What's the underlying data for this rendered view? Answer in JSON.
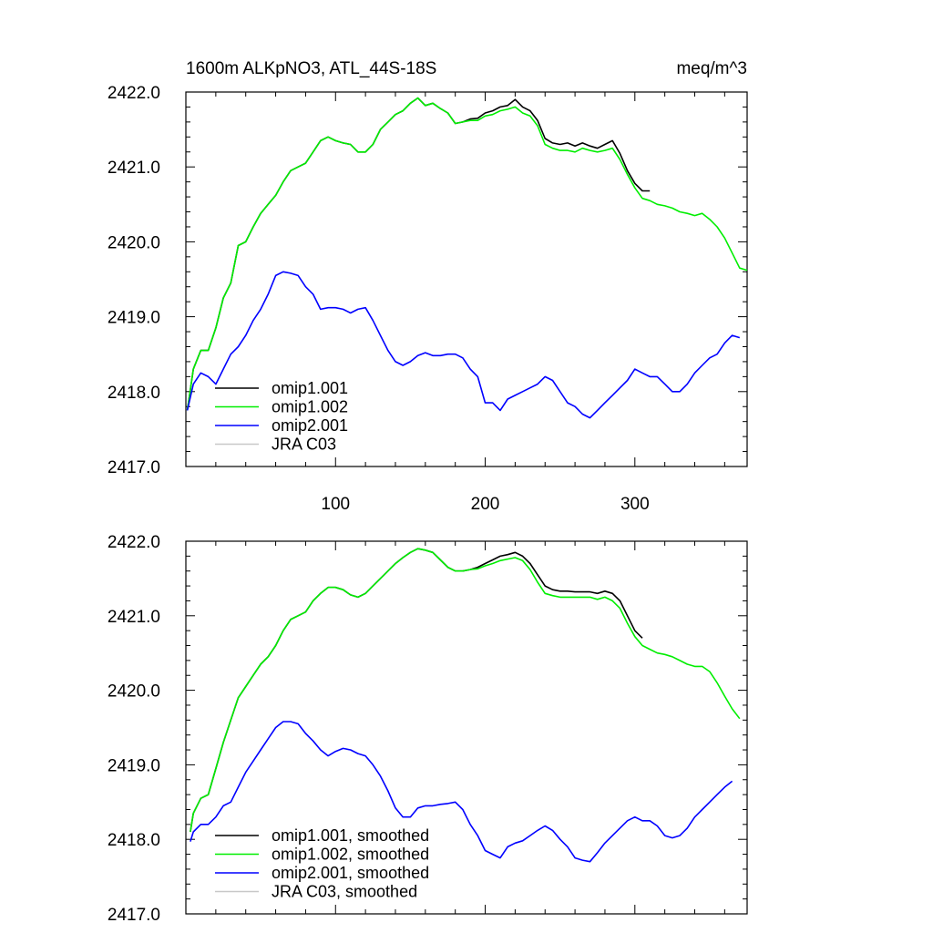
{
  "figure": {
    "title_left": "1600m ALKpNO3, ATL_44S-18S",
    "title_right": "meq/m^3"
  },
  "chart_data": [
    {
      "type": "line",
      "title": "1600m ALKpNO3, ATL_44S-18S",
      "units": "meq/m^3",
      "xlim": [
        0,
        375
      ],
      "ylim": [
        2417.0,
        2422.0
      ],
      "x_ticks": [
        100,
        200,
        300
      ],
      "x_tick_labels": [
        "100",
        "200",
        "300"
      ],
      "y_ticks": [
        2417.0,
        2418.0,
        2419.0,
        2420.0,
        2421.0,
        2422.0
      ],
      "y_tick_labels": [
        "2417.0",
        "2418.0",
        "2419.0",
        "2420.0",
        "2421.0",
        "2422.0"
      ],
      "grid": false,
      "legend_position": "bottom-left",
      "series": [
        {
          "name": "omip1.001",
          "color": "#000000",
          "x": [
            1,
            5,
            10,
            15,
            20,
            25,
            30,
            35,
            40,
            45,
            50,
            55,
            60,
            65,
            70,
            75,
            80,
            85,
            90,
            95,
            100,
            105,
            110,
            115,
            120,
            125,
            130,
            135,
            140,
            145,
            150,
            155,
            160,
            165,
            170,
            175,
            180,
            185,
            190,
            195,
            200,
            205,
            210,
            215,
            220,
            225,
            230,
            235,
            240,
            245,
            250,
            255,
            260,
            265,
            270,
            275,
            280,
            285,
            290,
            295,
            300,
            305,
            310
          ],
          "y": [
            2417.75,
            2418.3,
            2418.55,
            2418.55,
            2418.85,
            2419.25,
            2419.45,
            2419.95,
            2420.0,
            2420.2,
            2420.38,
            2420.5,
            2420.62,
            2420.8,
            2420.95,
            2421.0,
            2421.05,
            2421.2,
            2421.35,
            2421.4,
            2421.35,
            2421.32,
            2421.3,
            2421.2,
            2421.2,
            2421.3,
            2421.5,
            2421.6,
            2421.7,
            2421.75,
            2421.85,
            2421.92,
            2421.82,
            2421.85,
            2421.78,
            2421.72,
            2421.58,
            2421.6,
            2421.64,
            2421.65,
            2421.72,
            2421.75,
            2421.8,
            2421.82,
            2421.9,
            2421.8,
            2421.75,
            2421.62,
            2421.38,
            2421.32,
            2421.3,
            2421.32,
            2421.28,
            2421.32,
            2421.28,
            2421.25,
            2421.3,
            2421.35,
            2421.18,
            2420.95,
            2420.78,
            2420.68,
            2420.68
          ]
        },
        {
          "name": "omip1.002",
          "color": "#00ee00",
          "x": [
            1,
            5,
            10,
            15,
            20,
            25,
            30,
            35,
            40,
            45,
            50,
            55,
            60,
            65,
            70,
            75,
            80,
            85,
            90,
            95,
            100,
            105,
            110,
            115,
            120,
            125,
            130,
            135,
            140,
            145,
            150,
            155,
            160,
            165,
            170,
            175,
            180,
            185,
            190,
            195,
            200,
            205,
            210,
            215,
            220,
            225,
            230,
            235,
            240,
            245,
            250,
            255,
            260,
            265,
            270,
            275,
            280,
            285,
            290,
            295,
            300,
            305,
            310,
            315,
            320,
            325,
            330,
            335,
            340,
            345,
            350,
            355,
            360,
            365,
            370,
            375
          ],
          "y": [
            2417.75,
            2418.3,
            2418.55,
            2418.55,
            2418.85,
            2419.25,
            2419.45,
            2419.95,
            2420.0,
            2420.2,
            2420.38,
            2420.5,
            2420.62,
            2420.8,
            2420.95,
            2421.0,
            2421.05,
            2421.2,
            2421.35,
            2421.4,
            2421.35,
            2421.32,
            2421.3,
            2421.2,
            2421.2,
            2421.3,
            2421.5,
            2421.6,
            2421.7,
            2421.75,
            2421.85,
            2421.92,
            2421.82,
            2421.85,
            2421.78,
            2421.72,
            2421.58,
            2421.6,
            2421.62,
            2421.62,
            2421.68,
            2421.7,
            2421.75,
            2421.77,
            2421.8,
            2421.72,
            2421.68,
            2421.55,
            2421.3,
            2421.25,
            2421.22,
            2421.22,
            2421.2,
            2421.25,
            2421.22,
            2421.2,
            2421.22,
            2421.25,
            2421.1,
            2420.9,
            2420.72,
            2420.58,
            2420.55,
            2420.5,
            2420.48,
            2420.45,
            2420.4,
            2420.38,
            2420.35,
            2420.38,
            2420.3,
            2420.2,
            2420.05,
            2419.85,
            2419.65,
            2419.62
          ]
        },
        {
          "name": "omip2.001",
          "color": "#0000ff",
          "x": [
            1,
            5,
            10,
            15,
            20,
            25,
            30,
            35,
            40,
            45,
            50,
            55,
            60,
            65,
            70,
            75,
            80,
            85,
            90,
            95,
            100,
            105,
            110,
            115,
            120,
            125,
            130,
            135,
            140,
            145,
            150,
            155,
            160,
            165,
            170,
            175,
            180,
            185,
            190,
            195,
            200,
            205,
            210,
            215,
            220,
            225,
            230,
            235,
            240,
            245,
            250,
            255,
            260,
            265,
            270,
            275,
            280,
            285,
            290,
            295,
            300,
            305,
            310,
            315,
            320,
            325,
            330,
            335,
            340,
            345,
            350,
            355,
            360,
            365,
            370
          ],
          "y": [
            2417.75,
            2418.1,
            2418.25,
            2418.2,
            2418.1,
            2418.3,
            2418.5,
            2418.6,
            2418.75,
            2418.95,
            2419.1,
            2419.3,
            2419.55,
            2419.6,
            2419.58,
            2419.55,
            2419.4,
            2419.3,
            2419.1,
            2419.12,
            2419.12,
            2419.1,
            2419.05,
            2419.1,
            2419.12,
            2418.95,
            2418.75,
            2418.55,
            2418.4,
            2418.35,
            2418.4,
            2418.48,
            2418.52,
            2418.48,
            2418.48,
            2418.5,
            2418.5,
            2418.45,
            2418.3,
            2418.2,
            2417.85,
            2417.85,
            2417.75,
            2417.9,
            2417.95,
            2418.0,
            2418.05,
            2418.1,
            2418.2,
            2418.15,
            2418.0,
            2417.85,
            2417.8,
            2417.7,
            2417.65,
            2417.75,
            2417.85,
            2417.95,
            2418.05,
            2418.15,
            2418.3,
            2418.25,
            2418.2,
            2418.2,
            2418.1,
            2418.0,
            2418.0,
            2418.1,
            2418.25,
            2418.35,
            2418.45,
            2418.5,
            2418.65,
            2418.75,
            2418.72
          ]
        },
        {
          "name": "JRA C03",
          "color": "#c8c8c8",
          "x": [],
          "y": []
        }
      ]
    },
    {
      "type": "line",
      "xlim": [
        0,
        375
      ],
      "ylim": [
        2417.0,
        2422.0
      ],
      "x_ticks": [
        100,
        200,
        300
      ],
      "y_ticks": [
        2417.0,
        2418.0,
        2419.0,
        2420.0,
        2421.0,
        2422.0
      ],
      "y_tick_labels": [
        "2417.0",
        "2418.0",
        "2419.0",
        "2420.0",
        "2421.0",
        "2422.0"
      ],
      "grid": false,
      "legend_position": "bottom-left",
      "series": [
        {
          "name": "omip1.001, smoothed",
          "color": "#000000",
          "x": [
            3,
            5,
            10,
            15,
            20,
            25,
            30,
            35,
            40,
            45,
            50,
            55,
            60,
            65,
            70,
            75,
            80,
            85,
            90,
            95,
            100,
            105,
            110,
            115,
            120,
            125,
            130,
            135,
            140,
            145,
            150,
            155,
            160,
            165,
            170,
            175,
            180,
            185,
            190,
            195,
            200,
            205,
            210,
            215,
            220,
            225,
            230,
            235,
            240,
            245,
            250,
            255,
            260,
            265,
            270,
            275,
            280,
            285,
            290,
            295,
            300,
            305
          ],
          "y": [
            2418.1,
            2418.35,
            2418.55,
            2418.6,
            2418.95,
            2419.3,
            2419.6,
            2419.9,
            2420.05,
            2420.2,
            2420.35,
            2420.45,
            2420.6,
            2420.8,
            2420.95,
            2421.0,
            2421.05,
            2421.2,
            2421.3,
            2421.38,
            2421.38,
            2421.35,
            2421.28,
            2421.25,
            2421.3,
            2421.4,
            2421.5,
            2421.6,
            2421.7,
            2421.78,
            2421.85,
            2421.9,
            2421.88,
            2421.85,
            2421.75,
            2421.65,
            2421.6,
            2421.6,
            2421.62,
            2421.65,
            2421.7,
            2421.75,
            2421.8,
            2421.82,
            2421.85,
            2421.8,
            2421.7,
            2421.55,
            2421.4,
            2421.35,
            2421.33,
            2421.33,
            2421.32,
            2421.32,
            2421.32,
            2421.3,
            2421.33,
            2421.3,
            2421.2,
            2421.0,
            2420.8,
            2420.7
          ]
        },
        {
          "name": "omip1.002, smoothed",
          "color": "#00ee00",
          "x": [
            3,
            5,
            10,
            15,
            20,
            25,
            30,
            35,
            40,
            45,
            50,
            55,
            60,
            65,
            70,
            75,
            80,
            85,
            90,
            95,
            100,
            105,
            110,
            115,
            120,
            125,
            130,
            135,
            140,
            145,
            150,
            155,
            160,
            165,
            170,
            175,
            180,
            185,
            190,
            195,
            200,
            205,
            210,
            215,
            220,
            225,
            230,
            235,
            240,
            245,
            250,
            255,
            260,
            265,
            270,
            275,
            280,
            285,
            290,
            295,
            300,
            305,
            310,
            315,
            320,
            325,
            330,
            335,
            340,
            345,
            350,
            355,
            360,
            365,
            370
          ],
          "y": [
            2418.1,
            2418.35,
            2418.55,
            2418.6,
            2418.95,
            2419.3,
            2419.6,
            2419.9,
            2420.05,
            2420.2,
            2420.35,
            2420.45,
            2420.6,
            2420.8,
            2420.95,
            2421.0,
            2421.05,
            2421.2,
            2421.3,
            2421.38,
            2421.38,
            2421.35,
            2421.28,
            2421.25,
            2421.3,
            2421.4,
            2421.5,
            2421.6,
            2421.7,
            2421.78,
            2421.85,
            2421.9,
            2421.88,
            2421.85,
            2421.75,
            2421.65,
            2421.6,
            2421.6,
            2421.62,
            2421.63,
            2421.67,
            2421.7,
            2421.74,
            2421.76,
            2421.78,
            2421.74,
            2421.62,
            2421.45,
            2421.3,
            2421.27,
            2421.25,
            2421.25,
            2421.25,
            2421.25,
            2421.25,
            2421.22,
            2421.25,
            2421.2,
            2421.1,
            2420.9,
            2420.72,
            2420.6,
            2420.55,
            2420.5,
            2420.48,
            2420.45,
            2420.4,
            2420.35,
            2420.32,
            2420.32,
            2420.25,
            2420.1,
            2419.92,
            2419.75,
            2419.62
          ]
        },
        {
          "name": "omip2.001, smoothed",
          "color": "#0000ff",
          "x": [
            3,
            5,
            10,
            15,
            20,
            25,
            30,
            35,
            40,
            45,
            50,
            55,
            60,
            65,
            70,
            75,
            80,
            85,
            90,
            95,
            100,
            105,
            110,
            115,
            120,
            125,
            130,
            135,
            140,
            145,
            150,
            155,
            160,
            165,
            170,
            175,
            180,
            185,
            190,
            195,
            200,
            205,
            210,
            215,
            220,
            225,
            230,
            235,
            240,
            245,
            250,
            255,
            260,
            265,
            270,
            275,
            280,
            285,
            290,
            295,
            300,
            305,
            310,
            315,
            320,
            325,
            330,
            335,
            340,
            345,
            350,
            355,
            360,
            365
          ],
          "y": [
            2417.97,
            2418.1,
            2418.2,
            2418.2,
            2418.3,
            2418.45,
            2418.5,
            2418.7,
            2418.9,
            2419.05,
            2419.2,
            2419.35,
            2419.5,
            2419.58,
            2419.58,
            2419.55,
            2419.42,
            2419.32,
            2419.2,
            2419.12,
            2419.18,
            2419.22,
            2419.2,
            2419.15,
            2419.12,
            2419.0,
            2418.85,
            2418.65,
            2418.42,
            2418.3,
            2418.3,
            2418.42,
            2418.45,
            2418.45,
            2418.47,
            2418.48,
            2418.5,
            2418.4,
            2418.2,
            2418.05,
            2417.85,
            2417.8,
            2417.75,
            2417.9,
            2417.95,
            2417.98,
            2418.05,
            2418.12,
            2418.18,
            2418.12,
            2418.0,
            2417.9,
            2417.75,
            2417.72,
            2417.7,
            2417.82,
            2417.95,
            2418.05,
            2418.15,
            2418.25,
            2418.3,
            2418.25,
            2418.25,
            2418.18,
            2418.05,
            2418.02,
            2418.05,
            2418.15,
            2418.3,
            2418.4,
            2418.5,
            2418.6,
            2418.7,
            2418.78
          ]
        },
        {
          "name": "JRA C03, smoothed",
          "color": "#c8c8c8",
          "x": [],
          "y": []
        }
      ]
    }
  ]
}
